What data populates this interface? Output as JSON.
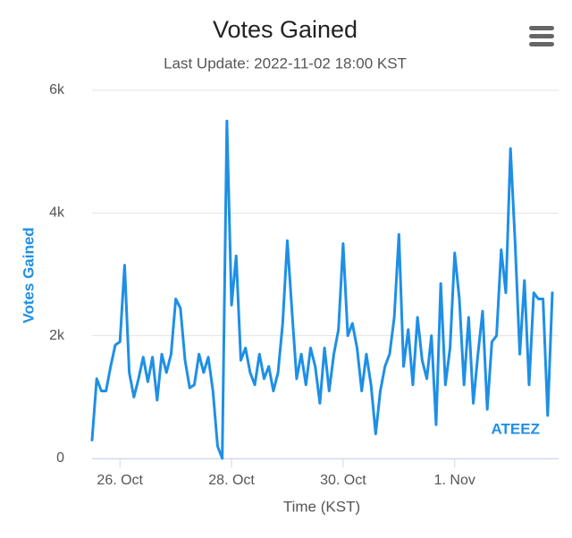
{
  "chart_data": {
    "type": "line",
    "title": "Votes Gained",
    "subtitle": "Last Update: 2022-11-02 18:00 KST",
    "x_label": "Time (KST)",
    "y_label": "Votes Gained",
    "categories": [
      null,
      null,
      null,
      null,
      null,
      null,
      "26. Oct",
      null,
      null,
      null,
      null,
      null,
      null,
      null,
      null,
      null,
      null,
      null,
      null,
      null,
      null,
      null,
      null,
      null,
      null,
      null,
      null,
      null,
      null,
      null,
      "28. Oct",
      null,
      null,
      null,
      null,
      null,
      null,
      null,
      null,
      null,
      null,
      null,
      null,
      null,
      null,
      null,
      null,
      null,
      null,
      null,
      null,
      null,
      null,
      null,
      "30. Oct",
      null,
      null,
      null,
      null,
      null,
      null,
      null,
      null,
      null,
      null,
      null,
      null,
      null,
      null,
      null,
      null,
      null,
      null,
      null,
      null,
      null,
      null,
      null,
      "1. Nov",
      null,
      null,
      null,
      null,
      null,
      null,
      null,
      null,
      null,
      null,
      null,
      null,
      null,
      null,
      null,
      null,
      null,
      null,
      null,
      null,
      null
    ],
    "series": [
      {
        "name": "ATEEZ",
        "color": "#1e8fe6",
        "values": [
          300,
          1300,
          1100,
          1100,
          1500,
          1850,
          1900,
          3150,
          1400,
          1000,
          1300,
          1650,
          1250,
          1650,
          950,
          1700,
          1400,
          1700,
          2600,
          2450,
          1600,
          1150,
          1200,
          1700,
          1400,
          1650,
          1100,
          200,
          0,
          5500,
          2500,
          3300,
          1600,
          1800,
          1400,
          1200,
          1700,
          1300,
          1500,
          1100,
          1400,
          2200,
          3550,
          2400,
          1300,
          1700,
          1200,
          1800,
          1500,
          900,
          1800,
          1100,
          1700,
          2100,
          3500,
          2000,
          2200,
          1800,
          1100,
          1700,
          1200,
          400,
          1100,
          1500,
          1700,
          2300,
          3650,
          1500,
          2100,
          1200,
          2300,
          1600,
          1300,
          2000,
          550,
          2850,
          1200,
          1800,
          3350,
          2600,
          1200,
          2300,
          900,
          1700,
          2400,
          800,
          1900,
          2000,
          3400,
          2700,
          5050,
          3500,
          1700,
          2900,
          1200,
          2700,
          2600,
          2600,
          700,
          2700
        ]
      }
    ],
    "ylim": [
      0,
      6000
    ],
    "yticks": [
      0,
      {
        "value": 2000,
        "label": "2k"
      },
      {
        "value": 4000,
        "label": "4k"
      },
      {
        "value": 6000,
        "label": "6k"
      }
    ],
    "grid": true
  }
}
